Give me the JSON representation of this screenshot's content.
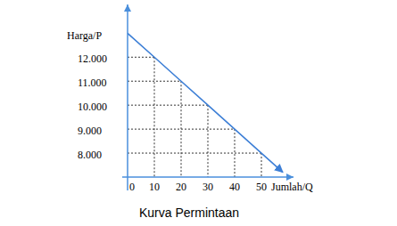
{
  "chart_data": {
    "type": "line",
    "title": "Kurva Permintaan",
    "x_label": "Jumlah/Q",
    "y_label": "Harga/P",
    "x": [
      0,
      10,
      20,
      30,
      40,
      50,
      58
    ],
    "values": [
      13000,
      12000,
      11000,
      10000,
      9000,
      8000,
      7200
    ],
    "color": "#3d7fd6",
    "xlim": [
      0,
      62
    ],
    "ylim": [
      7000,
      14200
    ],
    "xticks": [
      0,
      10,
      20,
      30,
      40,
      50
    ],
    "yticks": [
      {
        "value": 8000,
        "label": "8.000"
      },
      {
        "value": 9000,
        "label": "9.000"
      },
      {
        "value": 10000,
        "label": "10.000"
      },
      {
        "value": 11000,
        "label": "11.000"
      },
      {
        "value": 12000,
        "label": "12.000"
      }
    ],
    "grid": true
  }
}
